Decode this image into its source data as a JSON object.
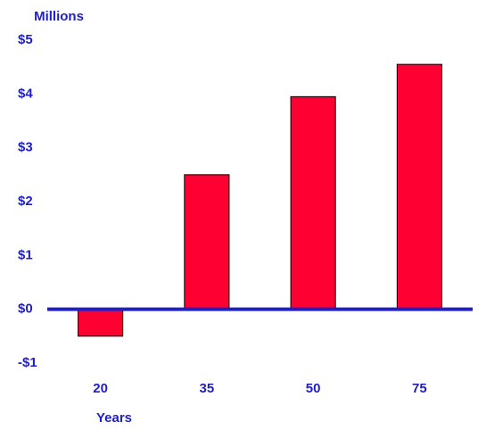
{
  "chart_data": {
    "type": "bar",
    "y_axis_label": "Millions",
    "x_axis_label": "Years",
    "categories": [
      "20",
      "35",
      "50",
      "75"
    ],
    "values": [
      -0.5,
      2.5,
      3.95,
      4.55
    ],
    "color": "#ff0033",
    "ylim": [
      -1,
      5
    ],
    "yticks": [
      {
        "value": -1,
        "label": "-$1"
      },
      {
        "value": 0,
        "label": "$0"
      },
      {
        "value": 1,
        "label": "$1"
      },
      {
        "value": 2,
        "label": "$2"
      },
      {
        "value": 3,
        "label": "$3"
      },
      {
        "value": 4,
        "label": "$4"
      },
      {
        "value": 5,
        "label": "$5"
      }
    ],
    "grid": false
  }
}
